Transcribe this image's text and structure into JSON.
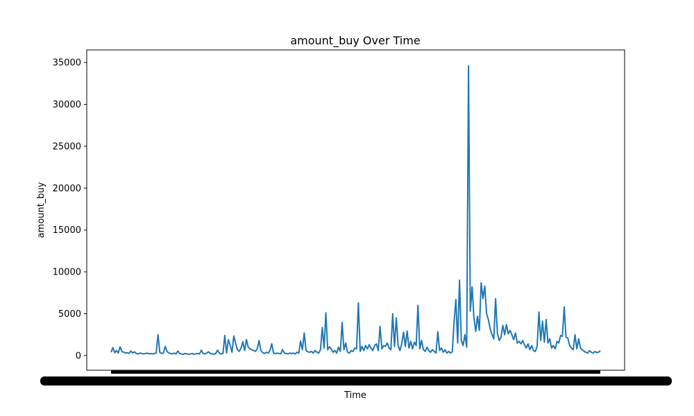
{
  "chart_data": {
    "type": "line",
    "title": "amount_buy Over Time",
    "xlabel": "Time",
    "ylabel": "amount_buy",
    "ylim": [
      -1750,
      36500
    ],
    "yticks": [
      0,
      5000,
      10000,
      15000,
      20000,
      25000,
      30000,
      35000
    ],
    "ytick_labels": [
      "0",
      "5000",
      "10000",
      "15000",
      "20000",
      "25000",
      "30000",
      "35000"
    ],
    "x_tick_labels_note": "x tick labels are overlapping and illegible",
    "grid": false,
    "line_color": "#1f77b4",
    "series": [
      {
        "values": [
          400,
          950,
          350,
          600,
          300,
          1050,
          500,
          400,
          300,
          350,
          250,
          550,
          300,
          450,
          250,
          200,
          300,
          250,
          200,
          250,
          300,
          200,
          250,
          200,
          250,
          300,
          2500,
          400,
          250,
          300,
          1100,
          500,
          300,
          250,
          200,
          300,
          200,
          550,
          250,
          200,
          150,
          250,
          200,
          150,
          200,
          250,
          150,
          200,
          250,
          200,
          650,
          250,
          200,
          300,
          450,
          250,
          200,
          150,
          250,
          650,
          300,
          200,
          250,
          2400,
          300,
          1900,
          1200,
          400,
          2350,
          1450,
          700,
          500,
          900,
          1650,
          600,
          1900,
          1000,
          800,
          700,
          600,
          500,
          800,
          1800,
          600,
          350,
          250,
          400,
          300,
          600,
          1400,
          300,
          250,
          300,
          250,
          200,
          700,
          300,
          250,
          200,
          300,
          250,
          300,
          200,
          400,
          300,
          1750,
          700,
          2700,
          600,
          450,
          400,
          500,
          300,
          600,
          400,
          300,
          700,
          3350,
          900,
          5100,
          700,
          1050,
          800,
          400,
          600,
          300,
          1000,
          500,
          3950,
          700,
          1500,
          400,
          300,
          600,
          500,
          900,
          800,
          6300,
          500,
          1100,
          600,
          1200,
          800,
          1300,
          900,
          600,
          1200,
          1400,
          600,
          3500,
          800,
          1200,
          1100,
          1500,
          900,
          700,
          5000,
          1100,
          4500,
          1200,
          600,
          1400,
          2800,
          1100,
          2950,
          900,
          1700,
          800,
          1600,
          1200,
          6000,
          800,
          1800,
          700,
          500,
          1000,
          600,
          400,
          700,
          500,
          300,
          2850,
          600,
          900,
          400,
          700,
          300,
          500,
          300,
          450,
          4000,
          6700,
          1500,
          9000,
          1800,
          1200,
          2500,
          1000,
          34600,
          5300,
          8200,
          4500,
          2900,
          4700,
          3000,
          8700,
          6800,
          8300,
          5000,
          4300,
          3200,
          2500,
          2000,
          6800,
          2700,
          1800,
          2200,
          3600,
          2500,
          3700,
          2600,
          3000,
          2500,
          1900,
          2700,
          1500,
          1700,
          1400,
          1800,
          1300,
          900,
          1400,
          700,
          1200,
          600,
          500,
          1100,
          5200,
          1800,
          4100,
          1600,
          4300,
          1500,
          2000,
          900,
          1200,
          800,
          1700,
          1500,
          2400,
          2300,
          5800,
          2200,
          2100,
          1200,
          900,
          700,
          2500,
          800,
          2000,
          900,
          700,
          500,
          400,
          300,
          600,
          400,
          300,
          500,
          350,
          400,
          600
        ]
      }
    ]
  }
}
